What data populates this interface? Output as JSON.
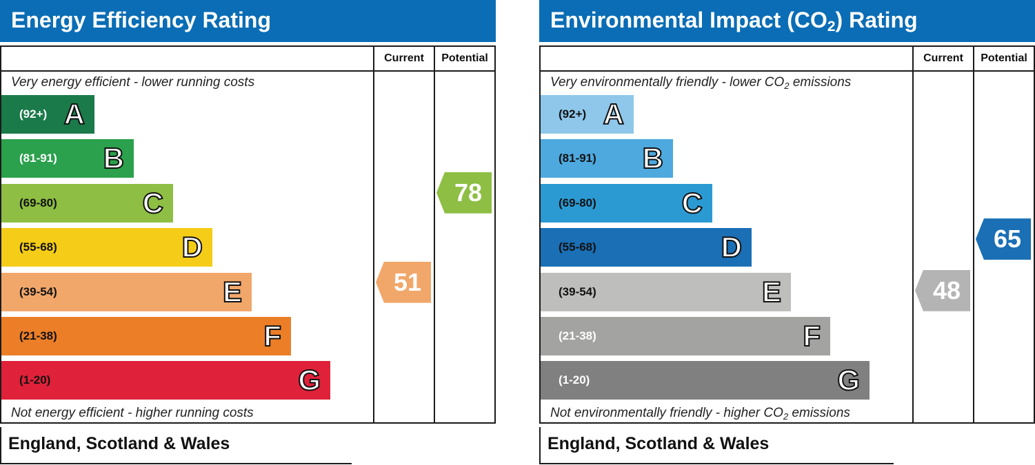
{
  "chart_data": [
    {
      "type": "bar",
      "title": "Energy Efficiency Rating",
      "columns": [
        "Current",
        "Potential"
      ],
      "top_note": "Very energy efficient - lower running costs",
      "bottom_note": "Not energy efficient - higher running costs",
      "bands": [
        {
          "range": "(92+)",
          "letter": "A",
          "color": "#1a7a4a",
          "text_color": "#ffffff",
          "length": 1
        },
        {
          "range": "(81-91)",
          "letter": "B",
          "color": "#2ba14d",
          "text_color": "#ffffff",
          "length": 2
        },
        {
          "range": "(69-80)",
          "letter": "C",
          "color": "#8ebe43",
          "text_color": "#111111",
          "length": 3
        },
        {
          "range": "(55-68)",
          "letter": "D",
          "color": "#f5cc17",
          "text_color": "#111111",
          "length": 4
        },
        {
          "range": "(39-54)",
          "letter": "E",
          "color": "#f1a76a",
          "text_color": "#111111",
          "length": 5
        },
        {
          "range": "(21-38)",
          "letter": "F",
          "color": "#eb7e27",
          "text_color": "#111111",
          "length": 6
        },
        {
          "range": "(1-20)",
          "letter": "G",
          "color": "#e0213a",
          "text_color": "#111111",
          "length": 7
        }
      ],
      "current": {
        "value": 51,
        "band": "E",
        "color": "#f1a76a"
      },
      "potential": {
        "value": 78,
        "band": "C",
        "color": "#8ebe43"
      },
      "footer": "England, Scotland & Wales"
    },
    {
      "type": "bar",
      "title": "Environmental Impact (CO",
      "title_sub": "2",
      "title_tail": ") Rating",
      "columns": [
        "Current",
        "Potential"
      ],
      "top_note": "Very environmentally friendly - lower CO",
      "top_note_sub": "2",
      "top_note_tail": " emissions",
      "bottom_note": "Not environmentally friendly - higher CO",
      "bottom_note_sub": "2",
      "bottom_note_tail": " emissions",
      "bands": [
        {
          "range": "(92+)",
          "letter": "A",
          "color": "#8ec7ea",
          "text_color": "#111111",
          "length": 1
        },
        {
          "range": "(81-91)",
          "letter": "B",
          "color": "#4da9de",
          "text_color": "#111111",
          "length": 2
        },
        {
          "range": "(69-80)",
          "letter": "C",
          "color": "#2b9ad3",
          "text_color": "#111111",
          "length": 3
        },
        {
          "range": "(55-68)",
          "letter": "D",
          "color": "#1a6fb5",
          "text_color": "#111111",
          "length": 4
        },
        {
          "range": "(39-54)",
          "letter": "E",
          "color": "#bebebc",
          "text_color": "#111111",
          "length": 5
        },
        {
          "range": "(21-38)",
          "letter": "F",
          "color": "#a3a3a1",
          "text_color": "#ffffff",
          "length": 6
        },
        {
          "range": "(1-20)",
          "letter": "G",
          "color": "#808080",
          "text_color": "#ffffff",
          "length": 7
        }
      ],
      "current": {
        "value": 48,
        "band": "E",
        "color": "#b4b4b4"
      },
      "potential": {
        "value": 65,
        "band": "D",
        "color": "#1a6fb5"
      },
      "footer": "England, Scotland & Wales"
    }
  ]
}
